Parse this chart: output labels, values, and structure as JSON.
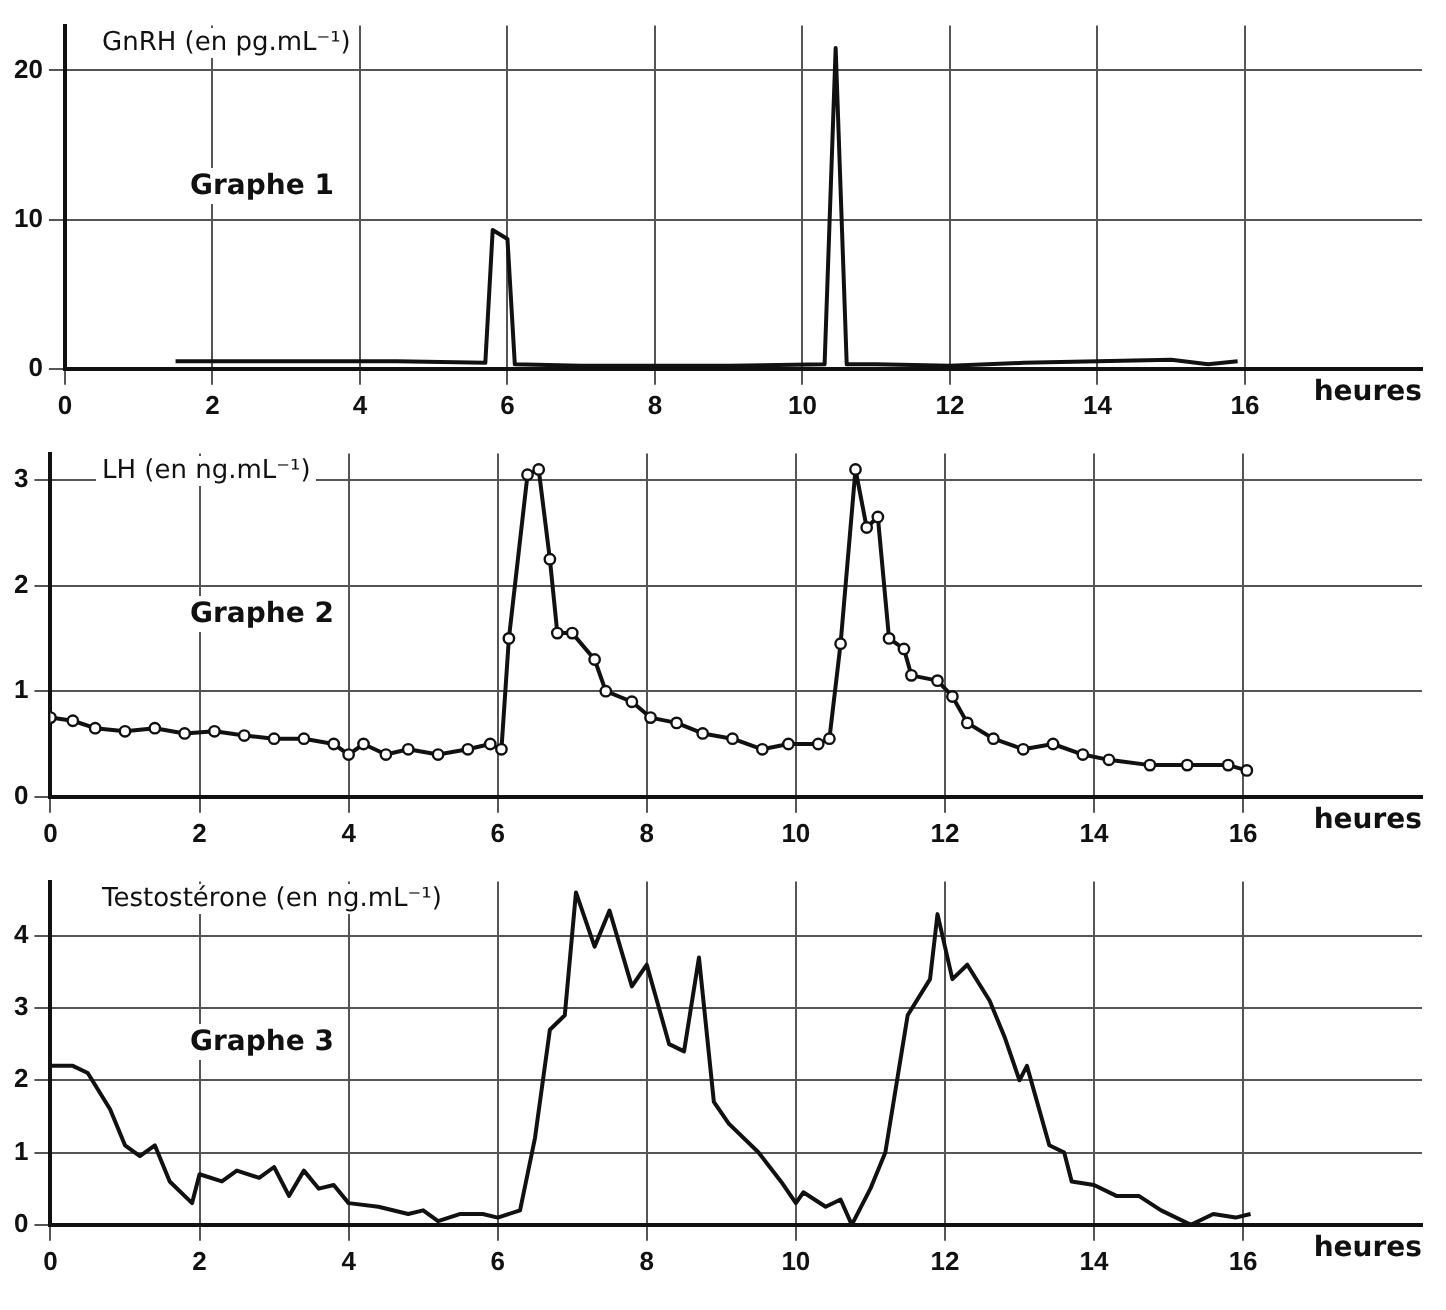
{
  "chart_data": [
    {
      "type": "line",
      "title": "Graphe 1",
      "ylabel": "GnRH (en pg.mL⁻¹)",
      "xlabel": "heures",
      "xlim": [
        0,
        18.4
      ],
      "xticks": [
        0,
        2,
        4,
        6,
        8,
        10,
        12,
        14,
        16
      ],
      "ylim": [
        0,
        23
      ],
      "yticks": [
        0,
        10,
        20
      ],
      "grid": true,
      "legend": false,
      "marker": "none",
      "series": [
        {
          "color": "#111111",
          "x": [
            1.5,
            3,
            4.5,
            5.7,
            5.8,
            6.0,
            6.1,
            7,
            8,
            9,
            10.3,
            10.45,
            10.6,
            11,
            12,
            13,
            14,
            15,
            15.5,
            15.9
          ],
          "values": [
            0.5,
            0.5,
            0.5,
            0.4,
            9.3,
            8.7,
            0.3,
            0.2,
            0.2,
            0.2,
            0.3,
            21.5,
            0.3,
            0.3,
            0.2,
            0.4,
            0.5,
            0.6,
            0.3,
            0.5
          ]
        }
      ]
    },
    {
      "type": "line",
      "title": "Graphe 2",
      "ylabel": "LH (en ng.mL⁻¹)",
      "xlabel": "heures",
      "xlim": [
        0,
        18.4
      ],
      "xticks": [
        0,
        2,
        4,
        6,
        8,
        10,
        12,
        14,
        16
      ],
      "ylim": [
        0,
        3.25
      ],
      "yticks": [
        0,
        1,
        2,
        3
      ],
      "grid": true,
      "legend": false,
      "marker": "circle",
      "series": [
        {
          "color": "#111111",
          "x": [
            0,
            0.3,
            0.6,
            1.0,
            1.4,
            1.8,
            2.2,
            2.6,
            3.0,
            3.4,
            3.8,
            4.0,
            4.2,
            4.5,
            4.8,
            5.2,
            5.6,
            5.9,
            6.05,
            6.15,
            6.4,
            6.55,
            6.7,
            6.8,
            7.0,
            7.3,
            7.45,
            7.8,
            8.05,
            8.4,
            8.75,
            9.15,
            9.55,
            9.9,
            10.3,
            10.45,
            10.6,
            10.8,
            10.95,
            11.1,
            11.25,
            11.45,
            11.55,
            11.9,
            12.1,
            12.3,
            12.65,
            13.05,
            13.45,
            13.85,
            14.2,
            14.75,
            15.25,
            15.8,
            16.05
          ],
          "values": [
            0.75,
            0.72,
            0.65,
            0.62,
            0.65,
            0.6,
            0.62,
            0.58,
            0.55,
            0.55,
            0.5,
            0.4,
            0.5,
            0.4,
            0.45,
            0.4,
            0.45,
            0.5,
            0.45,
            1.5,
            3.05,
            3.1,
            2.25,
            1.55,
            1.55,
            1.3,
            1.0,
            0.9,
            0.75,
            0.7,
            0.6,
            0.55,
            0.45,
            0.5,
            0.5,
            0.55,
            1.45,
            3.1,
            2.55,
            2.65,
            1.5,
            1.4,
            1.15,
            1.1,
            0.95,
            0.7,
            0.55,
            0.45,
            0.5,
            0.4,
            0.35,
            0.3,
            0.3,
            0.3,
            0.25
          ]
        }
      ]
    },
    {
      "type": "line",
      "title": "Graphe 3",
      "ylabel": "Testostérone (en ng.mL⁻¹)",
      "xlabel": "heures",
      "xlim": [
        0,
        18.4
      ],
      "xticks": [
        0,
        2,
        4,
        6,
        8,
        10,
        12,
        14,
        16
      ],
      "ylim": [
        0,
        4.75
      ],
      "yticks": [
        0,
        1,
        2,
        3,
        4
      ],
      "grid": true,
      "legend": false,
      "marker": "none",
      "series": [
        {
          "color": "#111111",
          "x": [
            0,
            0.3,
            0.5,
            0.8,
            1.0,
            1.2,
            1.4,
            1.6,
            1.9,
            2.0,
            2.3,
            2.5,
            2.8,
            3.0,
            3.2,
            3.4,
            3.6,
            3.8,
            4.0,
            4.4,
            4.8,
            5.0,
            5.2,
            5.5,
            5.8,
            6.0,
            6.3,
            6.5,
            6.7,
            6.9,
            7.05,
            7.3,
            7.5,
            7.8,
            8.0,
            8.3,
            8.5,
            8.7,
            8.9,
            9.1,
            9.5,
            9.8,
            10.0,
            10.1,
            10.4,
            10.6,
            10.75,
            11.0,
            11.2,
            11.5,
            11.8,
            11.9,
            12.1,
            12.3,
            12.6,
            12.8,
            13.0,
            13.1,
            13.4,
            13.6,
            13.7,
            14.0,
            14.3,
            14.6,
            14.9,
            15.3,
            15.6,
            15.9,
            16.1
          ],
          "values": [
            2.2,
            2.2,
            2.1,
            1.6,
            1.1,
            0.95,
            1.1,
            0.6,
            0.3,
            0.7,
            0.6,
            0.75,
            0.65,
            0.8,
            0.4,
            0.75,
            0.5,
            0.55,
            0.3,
            0.25,
            0.15,
            0.2,
            0.05,
            0.15,
            0.15,
            0.1,
            0.2,
            1.2,
            2.7,
            2.9,
            4.6,
            3.85,
            4.35,
            3.3,
            3.6,
            2.5,
            2.4,
            3.7,
            1.7,
            1.4,
            1.0,
            0.6,
            0.3,
            0.45,
            0.25,
            0.35,
            0.0,
            0.5,
            1.0,
            2.9,
            3.4,
            4.3,
            3.4,
            3.6,
            3.1,
            2.6,
            2.0,
            2.2,
            1.1,
            1.0,
            0.6,
            0.55,
            0.4,
            0.4,
            0.2,
            0.0,
            0.15,
            0.1,
            0.15
          ]
        }
      ]
    }
  ]
}
